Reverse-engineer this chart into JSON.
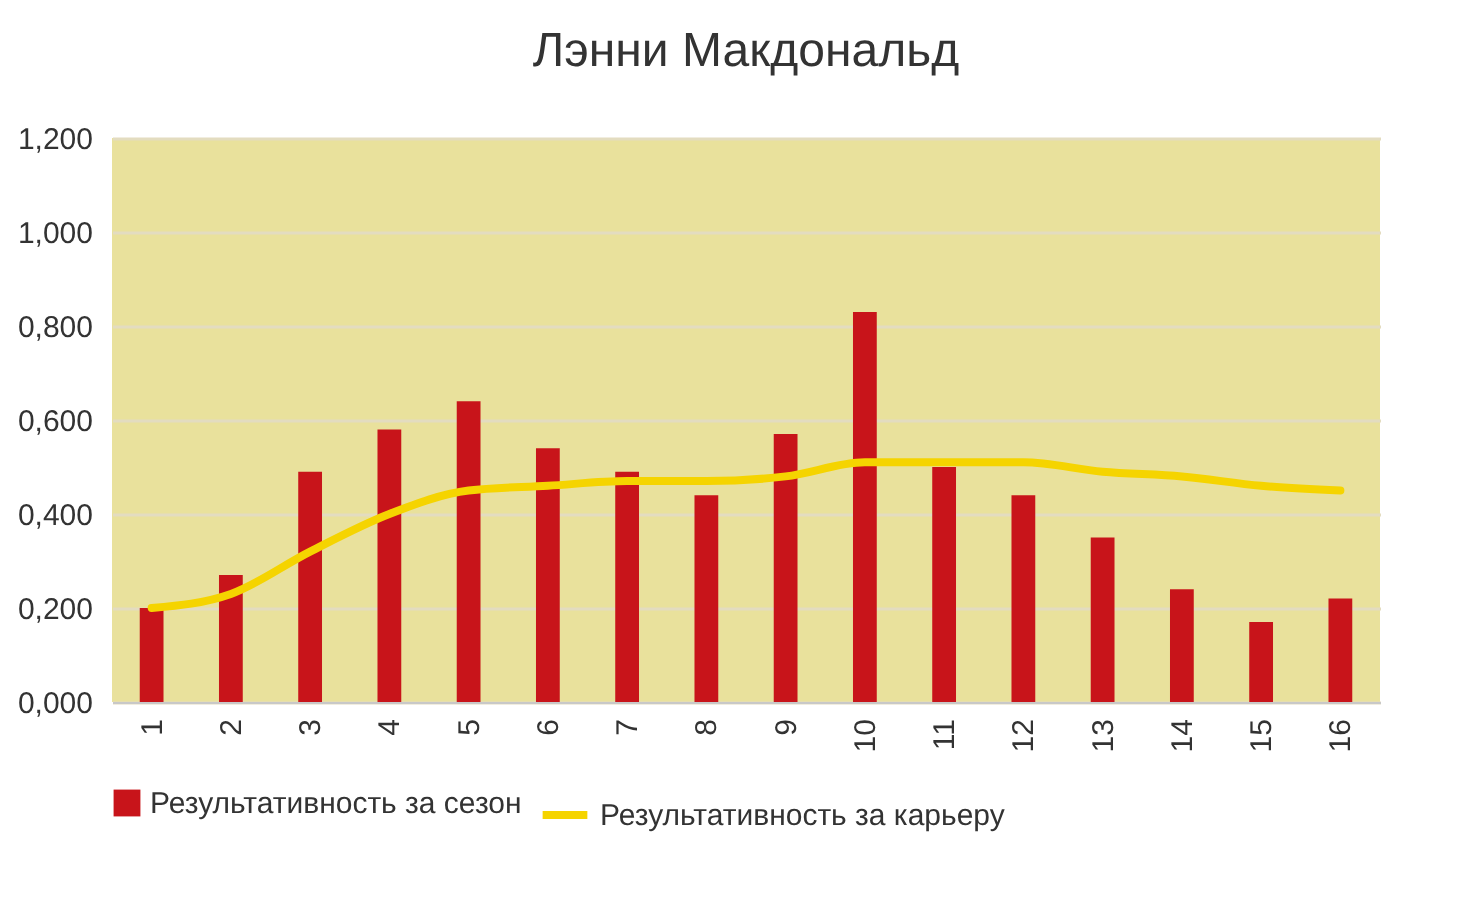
{
  "chart_data": {
    "type": "bar",
    "title": "Лэнни Макдональд",
    "categories": [
      "1",
      "2",
      "3",
      "4",
      "5",
      "6",
      "7",
      "8",
      "9",
      "10",
      "11",
      "12",
      "13",
      "14",
      "15",
      "16"
    ],
    "series": [
      {
        "name": "Результативность за сезон",
        "color": "#c8141a",
        "values": [
          0.2,
          0.27,
          0.49,
          0.58,
          0.64,
          0.54,
          0.49,
          0.44,
          0.57,
          0.83,
          0.5,
          0.44,
          0.35,
          0.24,
          0.17,
          0.22
        ]
      },
      {
        "name": "Результативность за карьеру",
        "type": "line",
        "color": "#f5d400",
        "values": [
          0.2,
          0.23,
          0.32,
          0.4,
          0.45,
          0.46,
          0.47,
          0.47,
          0.48,
          0.51,
          0.51,
          0.51,
          0.49,
          0.48,
          0.46,
          0.45
        ]
      }
    ],
    "ylim": [
      0,
      1.2
    ],
    "yticks": [
      {
        "value": 0,
        "label": "0,000"
      },
      {
        "value": 0.2,
        "label": "0,200"
      },
      {
        "value": 0.4,
        "label": "0,400"
      },
      {
        "value": 0.6,
        "label": "0,600"
      },
      {
        "value": 0.8,
        "label": "0,800"
      },
      {
        "value": 1,
        "label": "1,000"
      },
      {
        "value": 1.2,
        "label": "1,200"
      }
    ],
    "grid": "y",
    "legend": "bottom"
  }
}
